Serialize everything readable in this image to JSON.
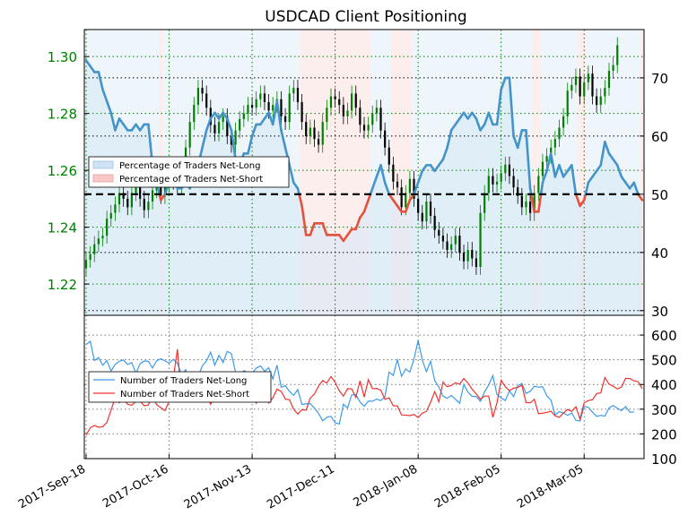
{
  "chart_data": [
    {
      "type": "line",
      "title": "USDCAD Client Positioning",
      "left_axis": {
        "ticks": [
          "1.22",
          "1.24",
          "1.26",
          "1.28",
          "1.30"
        ],
        "values": [
          1.22,
          1.24,
          1.26,
          1.28,
          1.3
        ],
        "ylim": [
          1.209,
          1.3095
        ],
        "color": "#008000"
      },
      "right_axis": {
        "ticks": [
          "30",
          "40",
          "50",
          "60",
          "70"
        ],
        "values": [
          30,
          40,
          50,
          60,
          70
        ],
        "ylim": [
          29.2,
          78.3
        ]
      },
      "x_ticks": [
        "2017-Sep-18",
        "2017-Oct-16",
        "2017-Nov-13",
        "2017-Dec-11",
        "2018-Jan-08",
        "2018-Feb-05",
        "2018-Mar-05"
      ],
      "x_tick_index": [
        0,
        20,
        40,
        60,
        80,
        100,
        120
      ],
      "n_days": 135,
      "reference_line": 50,
      "candles_close": [
        1.2285,
        1.2305,
        1.234,
        1.236,
        1.237,
        1.243,
        1.245,
        1.248,
        1.252,
        1.25,
        1.247,
        1.252,
        1.255,
        1.25,
        1.246,
        1.249,
        1.253,
        1.256,
        1.251,
        1.255,
        1.26,
        1.256,
        1.254,
        1.2575,
        1.268,
        1.277,
        1.283,
        1.289,
        1.287,
        1.282,
        1.276,
        1.273,
        1.277,
        1.279,
        1.272,
        1.269,
        1.274,
        1.278,
        1.28,
        1.283,
        1.282,
        1.285,
        1.287,
        1.284,
        1.281,
        1.283,
        1.285,
        1.279,
        1.277,
        1.287,
        1.289,
        1.284,
        1.277,
        1.272,
        1.275,
        1.271,
        1.269,
        1.277,
        1.282,
        1.286,
        1.285,
        1.283,
        1.279,
        1.281,
        1.287,
        1.282,
        1.276,
        1.274,
        1.276,
        1.28,
        1.282,
        1.274,
        1.268,
        1.262,
        1.256,
        1.254,
        1.247,
        1.252,
        1.257,
        1.25,
        1.245,
        1.242,
        1.249,
        1.244,
        1.239,
        1.237,
        1.235,
        1.232,
        1.234,
        1.237,
        1.231,
        1.228,
        1.232,
        1.229,
        1.226,
        1.245,
        1.252,
        1.258,
        1.255,
        1.256,
        1.259,
        1.262,
        1.258,
        1.254,
        1.251,
        1.247,
        1.249,
        1.245,
        1.252,
        1.258,
        1.263,
        1.265,
        1.268,
        1.271,
        1.275,
        1.279,
        1.288,
        1.29,
        1.293,
        1.286,
        1.291,
        1.294,
        1.286,
        1.283,
        1.286,
        1.289,
        1.295,
        1.297,
        1.304
      ],
      "series": [
        {
          "name": "Percentage of Traders Net-Long",
          "color": "#4494c9",
          "fill": "#cfe3f5",
          "values": [
            73,
            72,
            71,
            71,
            68,
            66,
            64,
            61,
            63,
            62,
            61,
            61,
            62,
            61,
            62,
            62,
            55,
            52,
            49,
            50,
            52,
            53,
            51,
            51,
            52,
            51,
            53,
            55,
            58,
            61,
            63,
            64,
            63,
            64,
            63,
            61,
            56,
            55,
            57,
            57,
            60,
            62,
            62,
            63,
            64,
            62,
            66,
            61,
            58,
            55,
            52,
            51,
            48,
            43,
            43,
            45,
            45,
            45,
            43,
            43,
            43,
            43,
            42,
            43,
            44,
            44,
            46,
            47,
            49,
            51,
            53,
            55,
            52,
            50,
            49,
            48,
            47,
            47,
            49,
            50,
            52,
            54,
            55,
            55,
            54,
            55,
            56,
            58,
            61,
            62,
            63,
            64,
            63,
            64,
            63,
            61,
            62,
            64,
            62,
            62,
            68,
            70,
            70,
            60,
            58,
            61,
            61,
            51,
            47,
            47,
            52,
            54,
            57,
            53,
            55,
            53,
            54,
            55,
            50,
            48,
            49,
            52,
            53,
            54,
            55,
            59,
            57,
            56,
            55,
            53,
            52,
            51,
            52,
            50,
            49
          ]
        },
        {
          "name": "Percentage of Traders Net-Short",
          "color": "#e3523b",
          "fill": "#f8c8c8"
        }
      ]
    },
    {
      "type": "line",
      "left_axis_ticks": [],
      "right_axis": {
        "ticks": [
          "100",
          "200",
          "300",
          "400",
          "500",
          "600"
        ],
        "values": [
          100,
          200,
          300,
          400,
          500,
          600
        ],
        "ylim": [
          100,
          680
        ]
      },
      "series": [
        {
          "name": "Number of Traders Net-Long",
          "color": "#3d9be9",
          "values": [
            561,
            575,
            497,
            509,
            478,
            497,
            455,
            481,
            494,
            499,
            481,
            489,
            445,
            484,
            495,
            494,
            467,
            496,
            504,
            496,
            486,
            502,
            486,
            440,
            460,
            405,
            342,
            430,
            476,
            495,
            531,
            478,
            518,
            489,
            534,
            525,
            450,
            429,
            456,
            448,
            446,
            466,
            475,
            454,
            468,
            422,
            478,
            389,
            395,
            372,
            356,
            379,
            319,
            322,
            322,
            305,
            283,
            253,
            267,
            271,
            245,
            240,
            320,
            305,
            358,
            359,
            329,
            312,
            333,
            332,
            341,
            335,
            350,
            450,
            437,
            500,
            433,
            463,
            450,
            503,
            579,
            499,
            452,
            494,
            416,
            389,
            353,
            344,
            356,
            340,
            324,
            400,
            369,
            352,
            351,
            332,
            370,
            398,
            436,
            359,
            346,
            335,
            374,
            351,
            395,
            404,
            364,
            372,
            393,
            389,
            391,
            354,
            337,
            277,
            290,
            285,
            275,
            285,
            255,
            252,
            311,
            308,
            288,
            271,
            275,
            272,
            305,
            315,
            304,
            294,
            311,
            288,
            289
          ]
        },
        {
          "name": "Number of Traders Net-Short",
          "color": "#ee3330",
          "values": [
            195,
            225,
            234,
            227,
            229,
            246,
            296,
            346,
            326,
            342,
            320,
            316,
            332,
            332,
            314,
            317,
            355,
            318,
            306,
            294,
            332,
            423,
            543,
            337,
            362,
            357,
            372,
            363,
            357,
            355,
            320,
            355,
            384,
            379,
            380,
            369,
            367,
            364,
            386,
            384,
            370,
            324,
            355,
            391,
            325,
            346,
            381,
            372,
            341,
            338,
            300,
            280,
            298,
            296,
            345,
            361,
            393,
            416,
            406,
            432,
            409,
            375,
            353,
            383,
            382,
            348,
            415,
            349,
            419,
            383,
            384,
            377,
            340,
            346,
            314,
            313,
            277,
            276,
            274,
            279,
            266,
            284,
            291,
            328,
            371,
            330,
            410,
            391,
            396,
            407,
            401,
            424,
            406,
            381,
            362,
            340,
            353,
            353,
            267,
            326,
            417,
            391,
            375,
            385,
            388,
            397,
            327,
            326,
            340,
            282,
            284,
            287,
            292,
            273,
            267,
            284,
            299,
            291,
            310,
            260,
            326,
            335,
            338,
            363,
            366,
            428,
            401,
            393,
            382,
            390,
            425,
            424,
            415,
            411,
            383
          ]
        }
      ]
    }
  ],
  "legends": {
    "top": [
      "Percentage of Traders Net-Long",
      "Percentage of Traders Net-Short"
    ],
    "bottom": [
      "Number of Traders Net-Long",
      "Number of Traders Net-Short"
    ]
  }
}
